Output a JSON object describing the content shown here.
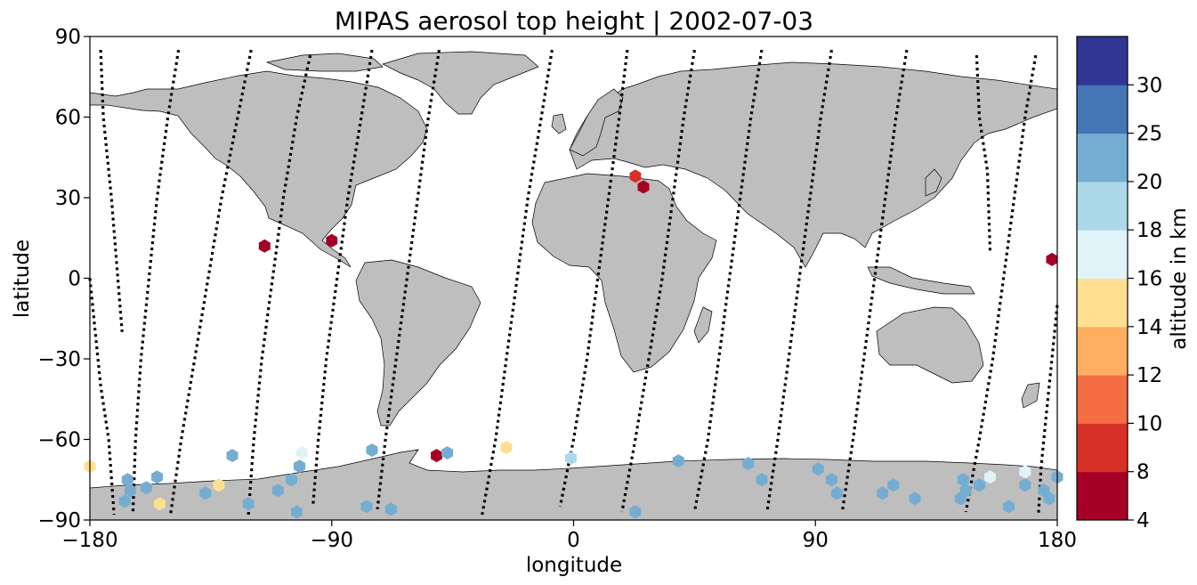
{
  "chart_data": {
    "type": "scatter",
    "title": "MIPAS aerosol top height | 2002-07-03",
    "xlabel": "longitude",
    "ylabel": "latitude",
    "xlim": [
      -180,
      180
    ],
    "ylim": [
      -90,
      90
    ],
    "x_ticks": [
      "−180",
      "−90",
      "0",
      "90",
      "180"
    ],
    "x_tick_values": [
      -180,
      -90,
      0,
      90,
      180
    ],
    "y_ticks": [
      "90",
      "60",
      "30",
      "0",
      "−30",
      "−60",
      "−90"
    ],
    "y_tick_values": [
      90,
      60,
      30,
      0,
      -30,
      -60,
      -90
    ],
    "background_map": "world coastlines, land filled gray",
    "land_color": "#bebebe",
    "colorbar": {
      "label": "altitude in km",
      "boundaries": [
        4,
        8,
        10,
        12,
        14,
        16,
        18,
        20,
        25,
        30
      ],
      "tick_labels": [
        "4",
        "8",
        "10",
        "12",
        "14",
        "16",
        "18",
        "20",
        "25",
        "30"
      ],
      "colors": [
        "#a50026",
        "#d73027",
        "#f46d43",
        "#fdae61",
        "#fee090",
        "#e0f3f8",
        "#abd9e9",
        "#74add1",
        "#4575b4",
        "#313695"
      ]
    },
    "track_style": "black dotted satellite orbit tracks",
    "orbit_tracks": [
      {
        "points": [
          [
            -176,
            85
          ],
          [
            -175,
            60
          ],
          [
            -172,
            30
          ],
          [
            -170,
            5
          ],
          [
            -168,
            -20
          ]
        ]
      },
      {
        "points": [
          [
            -147,
            85
          ],
          [
            -151,
            60
          ],
          [
            -155,
            30
          ],
          [
            -158,
            0
          ],
          [
            -161,
            -30
          ],
          [
            -163,
            -60
          ],
          [
            -164,
            -88
          ]
        ]
      },
      {
        "points": [
          [
            -120,
            85
          ],
          [
            -125,
            60
          ],
          [
            -131,
            30
          ],
          [
            -136,
            0
          ],
          [
            -141,
            -30
          ],
          [
            -146,
            -60
          ],
          [
            -150,
            -88
          ]
        ]
      },
      {
        "points": [
          [
            -98,
            83
          ],
          [
            -103,
            60
          ],
          [
            -108,
            30
          ],
          [
            -112,
            0
          ],
          [
            -116,
            -30
          ],
          [
            -119,
            -60
          ],
          [
            -121,
            -88
          ]
        ]
      },
      {
        "points": [
          [
            -75,
            85
          ],
          [
            -79,
            60
          ],
          [
            -84,
            30
          ],
          [
            -88,
            0
          ],
          [
            -92,
            -30
          ],
          [
            -95,
            -60
          ],
          [
            -97,
            -85
          ]
        ]
      },
      {
        "points": [
          [
            -50,
            85
          ],
          [
            -54,
            60
          ],
          [
            -58,
            30
          ],
          [
            -62,
            0
          ],
          [
            -66,
            -30
          ],
          [
            -70,
            -60
          ],
          [
            -73,
            -86
          ]
        ]
      },
      {
        "points": [
          [
            -8,
            85
          ],
          [
            -12,
            60
          ],
          [
            -17,
            30
          ],
          [
            -21,
            0
          ],
          [
            -25,
            -30
          ],
          [
            -29,
            -60
          ],
          [
            -34,
            -88
          ]
        ]
      },
      {
        "points": [
          [
            20,
            85
          ],
          [
            17,
            60
          ],
          [
            13,
            30
          ],
          [
            9,
            0
          ],
          [
            5,
            -30
          ],
          [
            0,
            -60
          ],
          [
            -5,
            -85
          ]
        ]
      },
      {
        "points": [
          [
            45,
            85
          ],
          [
            41,
            60
          ],
          [
            37,
            30
          ],
          [
            33,
            0
          ],
          [
            28,
            -30
          ],
          [
            23,
            -60
          ],
          [
            18,
            -87
          ]
        ]
      },
      {
        "points": [
          [
            70,
            85
          ],
          [
            66,
            60
          ],
          [
            62,
            30
          ],
          [
            58,
            0
          ],
          [
            54,
            -30
          ],
          [
            50,
            -60
          ],
          [
            45,
            -87
          ]
        ]
      },
      {
        "points": [
          [
            96,
            85
          ],
          [
            92,
            60
          ],
          [
            88,
            30
          ],
          [
            84,
            0
          ],
          [
            80,
            -30
          ],
          [
            76,
            -60
          ],
          [
            72,
            -87
          ]
        ]
      },
      {
        "points": [
          [
            124,
            85
          ],
          [
            120,
            60
          ],
          [
            116,
            30
          ],
          [
            112,
            0
          ],
          [
            108,
            -30
          ],
          [
            104,
            -60
          ],
          [
            100,
            -87
          ]
        ]
      },
      {
        "points": [
          [
            150,
            83
          ],
          [
            151,
            60
          ],
          [
            154,
            40
          ],
          [
            155,
            10
          ]
        ]
      },
      {
        "points": [
          [
            172,
            83
          ],
          [
            168,
            60
          ],
          [
            164,
            30
          ],
          [
            160,
            0
          ],
          [
            156,
            -30
          ],
          [
            151,
            -60
          ],
          [
            146,
            -87
          ]
        ]
      },
      {
        "points": [
          [
            -180,
            0
          ],
          [
            -178,
            -20
          ],
          [
            -176,
            -40
          ],
          [
            -173,
            -60
          ],
          [
            -171,
            -88
          ]
        ]
      },
      {
        "points": [
          [
            180,
            -10
          ],
          [
            178,
            -30
          ],
          [
            176,
            -50
          ],
          [
            174,
            -70
          ],
          [
            173,
            -88
          ]
        ]
      }
    ],
    "points": [
      {
        "lon": -180,
        "lat": -70,
        "value": 15
      },
      {
        "lon": -166,
        "lat": -75,
        "value": 22
      },
      {
        "lon": -165,
        "lat": -79,
        "value": 22
      },
      {
        "lon": -167,
        "lat": -83,
        "value": 22
      },
      {
        "lon": -159,
        "lat": -78,
        "value": 22
      },
      {
        "lon": -155,
        "lat": -74,
        "value": 22
      },
      {
        "lon": -154,
        "lat": -84,
        "value": 15
      },
      {
        "lon": -137,
        "lat": -80,
        "value": 22
      },
      {
        "lon": -132,
        "lat": -77,
        "value": 15
      },
      {
        "lon": -127,
        "lat": -66,
        "value": 22
      },
      {
        "lon": -121,
        "lat": -84,
        "value": 22
      },
      {
        "lon": -115,
        "lat": 12,
        "value": 6
      },
      {
        "lon": -110,
        "lat": -79,
        "value": 22
      },
      {
        "lon": -105,
        "lat": -75,
        "value": 22
      },
      {
        "lon": -102,
        "lat": -70,
        "value": 22
      },
      {
        "lon": -101,
        "lat": -65,
        "value": 17
      },
      {
        "lon": -103,
        "lat": -87,
        "value": 22
      },
      {
        "lon": -90,
        "lat": 14,
        "value": 6
      },
      {
        "lon": -77,
        "lat": -85,
        "value": 22
      },
      {
        "lon": -75,
        "lat": -64,
        "value": 22
      },
      {
        "lon": -68,
        "lat": -86,
        "value": 22
      },
      {
        "lon": -51,
        "lat": -66,
        "value": 6
      },
      {
        "lon": -47,
        "lat": -65,
        "value": 22
      },
      {
        "lon": -25,
        "lat": -63,
        "value": 15
      },
      {
        "lon": -1,
        "lat": -67,
        "value": 19
      },
      {
        "lon": 23,
        "lat": 38,
        "value": 9
      },
      {
        "lon": 26,
        "lat": 34,
        "value": 6
      },
      {
        "lon": 23,
        "lat": -87,
        "value": 22
      },
      {
        "lon": 39,
        "lat": -68,
        "value": 22
      },
      {
        "lon": 65,
        "lat": -69,
        "value": 22
      },
      {
        "lon": 70,
        "lat": -75,
        "value": 22
      },
      {
        "lon": 91,
        "lat": -71,
        "value": 22
      },
      {
        "lon": 96,
        "lat": -75,
        "value": 22
      },
      {
        "lon": 98,
        "lat": -80,
        "value": 22
      },
      {
        "lon": 115,
        "lat": -80,
        "value": 22
      },
      {
        "lon": 119,
        "lat": -77,
        "value": 22
      },
      {
        "lon": 127,
        "lat": -82,
        "value": 22
      },
      {
        "lon": 145,
        "lat": -75,
        "value": 22
      },
      {
        "lon": 146,
        "lat": -79,
        "value": 22
      },
      {
        "lon": 144,
        "lat": -82,
        "value": 22
      },
      {
        "lon": 151,
        "lat": -77,
        "value": 22
      },
      {
        "lon": 155,
        "lat": -74,
        "value": 17
      },
      {
        "lon": 162,
        "lat": -85,
        "value": 22
      },
      {
        "lon": 168,
        "lat": -72,
        "value": 17
      },
      {
        "lon": 168,
        "lat": -77,
        "value": 22
      },
      {
        "lon": 175,
        "lat": -79,
        "value": 22
      },
      {
        "lon": 177,
        "lat": -82,
        "value": 22
      },
      {
        "lon": 180,
        "lat": -74,
        "value": 22
      },
      {
        "lon": 178,
        "lat": 7,
        "value": 6
      }
    ]
  }
}
